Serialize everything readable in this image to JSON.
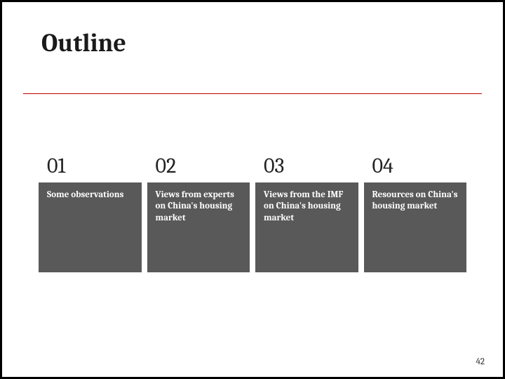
{
  "title": "Outline",
  "divider_color": "#c00000",
  "card_bg": "#595959",
  "card_text_color": "#ffffff",
  "cards": [
    {
      "num": "01",
      "text": "Some observations"
    },
    {
      "num": "02",
      "text": "Views from experts on China's housing market"
    },
    {
      "num": "03",
      "text": "Views from the IMF on China's housing market"
    },
    {
      "num": "04",
      "text": "Resources on China's housing market"
    }
  ],
  "page_number": "42"
}
